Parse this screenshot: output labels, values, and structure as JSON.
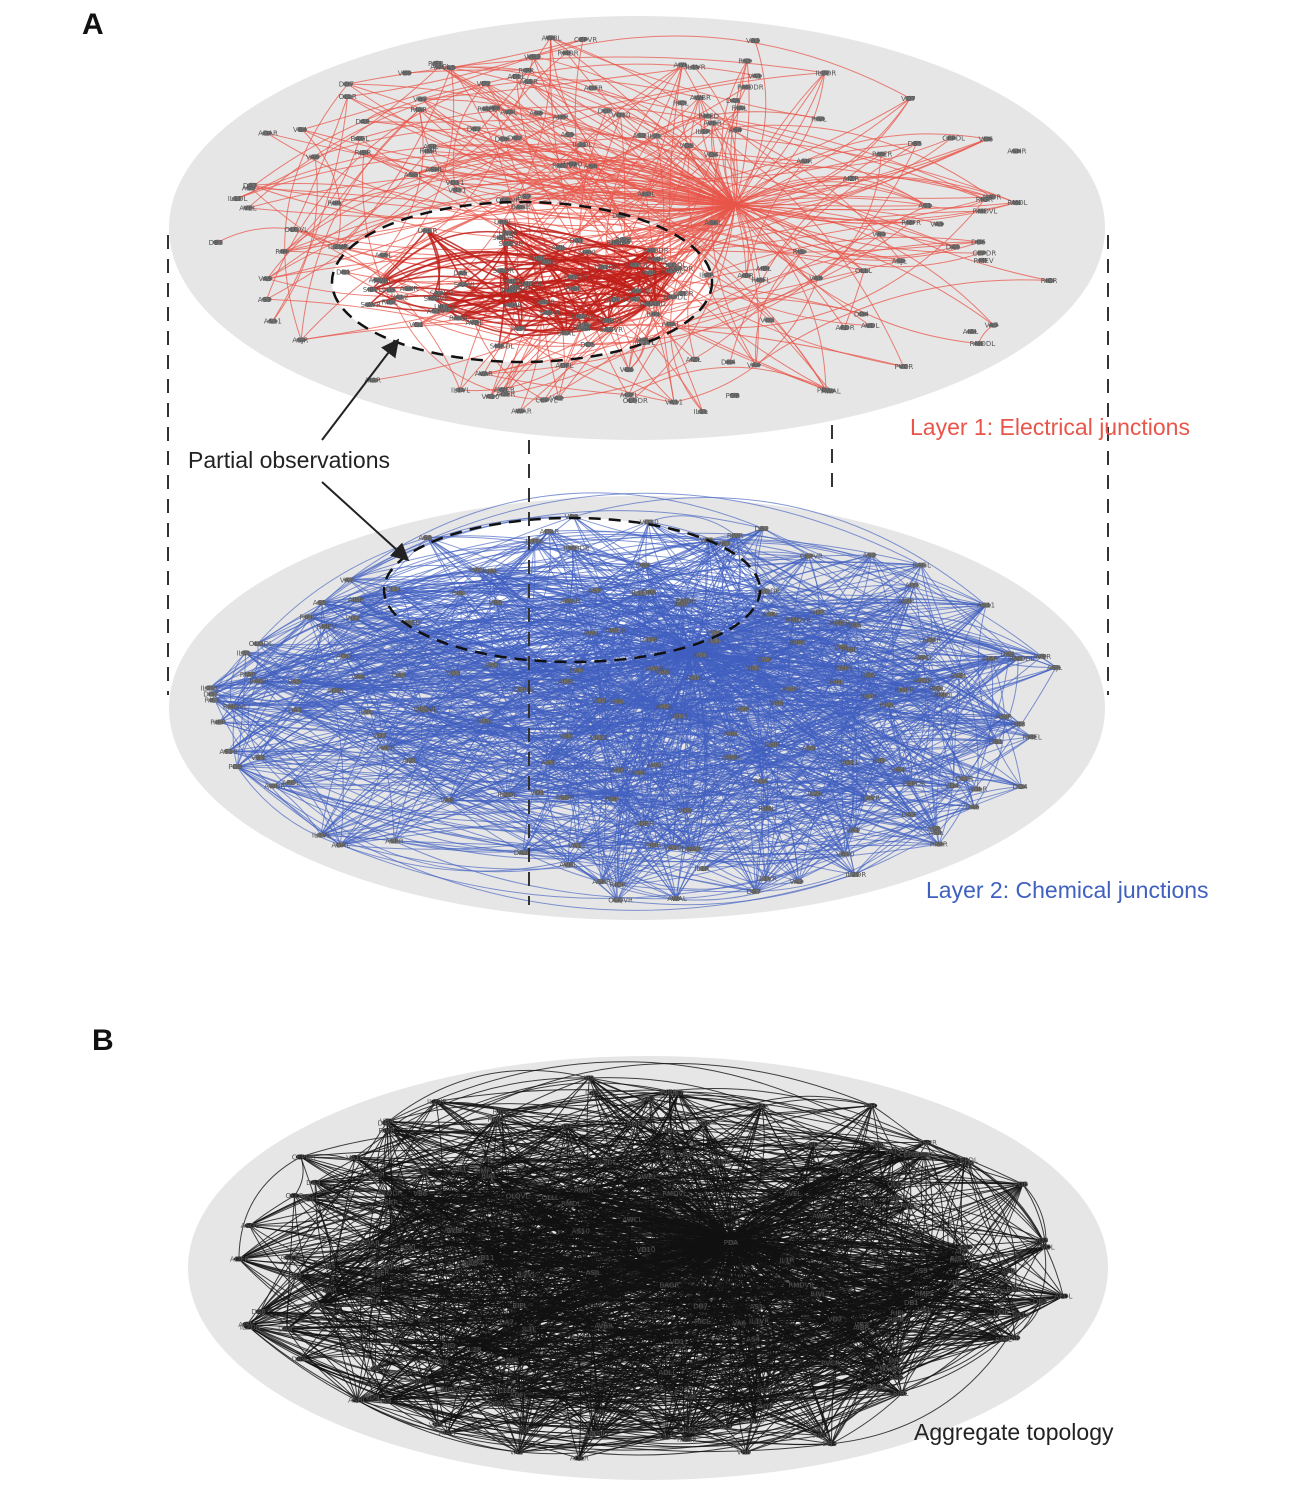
{
  "panels": {
    "a": {
      "letter": "A",
      "layer1": {
        "label": "Layer 1: Electrical junctions",
        "edge_color": "#e8564a",
        "highlight_edge_color": "#c0201a"
      },
      "layer2": {
        "label": "Layer 2: Chemical junctions",
        "edge_color": "#4060c0"
      },
      "annotation": "Partial observations"
    },
    "b": {
      "letter": "B",
      "label": "Aggregate topology",
      "edge_color": "#111111"
    }
  },
  "colors": {
    "disk": "#e6e6e6",
    "node": "#6f6f6f",
    "layer1_text": "#e8564a",
    "layer2_text": "#4060c0",
    "aggregate_text": "#222222"
  },
  "node_labels": [
    "DD6",
    "DD7",
    "VD2",
    "PDA",
    "VD8",
    "VD10",
    "VD9",
    "VD11",
    "PDB",
    "VD7",
    "DD4",
    "DD3",
    "DD5",
    "VD6",
    "VD5",
    "VD4",
    "VD3",
    "VD1",
    "AS1",
    "AS2",
    "AS3",
    "AS4",
    "AS5",
    "AS6",
    "AS7",
    "AS8",
    "AS9",
    "AS10",
    "AS11",
    "DA1",
    "DA2",
    "DA3",
    "DA4",
    "DA5",
    "DA6",
    "DA7",
    "DA8",
    "DA9",
    "DB1",
    "DB2",
    "DB3",
    "DB4",
    "DB5",
    "DB6",
    "DB7",
    "VA1",
    "VA2",
    "VA3",
    "VA4",
    "VA5",
    "VA6",
    "VA7",
    "VA8",
    "VA9",
    "VA10",
    "VA11",
    "VA12",
    "VB1",
    "VB2",
    "VB3",
    "VB4",
    "VB5",
    "VB6",
    "VB7",
    "VB8",
    "VB9",
    "VB10",
    "VB11",
    "AVAL",
    "AVAR",
    "AVBL",
    "AVBR",
    "AVDL",
    "AVDR",
    "AVEL",
    "AVER",
    "PVCL",
    "PVCR",
    "RIML",
    "RIMR",
    "AIBL",
    "AIBR",
    "AIYL",
    "AIYR",
    "AIZL",
    "AIZR",
    "AIAL",
    "AIAR",
    "ADAL",
    "ADAR",
    "ADEL",
    "ADER",
    "ADFL",
    "ADFR",
    "ADLL",
    "ADLR",
    "AFDL",
    "AFDR",
    "ASEL",
    "ASER",
    "ASGL",
    "ASGR",
    "ASHL",
    "ASHR",
    "ASIL",
    "ASIR",
    "ASJL",
    "ASJR",
    "ASKL",
    "ASKR",
    "AWAL",
    "AWAR",
    "AWBL",
    "AWBR",
    "AWCL",
    "AWCR",
    "BAGL",
    "BAGR",
    "CEPDL",
    "CEPDR",
    "CEPVL",
    "CEPVR",
    "IL1DL",
    "IL1DR",
    "IL1L",
    "IL1R",
    "IL1VL",
    "IL1VR",
    "IL2DL",
    "IL2DR",
    "IL2L",
    "IL2R",
    "IL2VL",
    "IL2VR",
    "OLLL",
    "OLLR",
    "OLQDL",
    "OLQDR",
    "OLQVL",
    "OLQVR",
    "RIAL",
    "RIAR",
    "RIBL",
    "RIBR",
    "RICL",
    "RICR",
    "RID",
    "RIFL",
    "RIFR",
    "RIGL",
    "RIGR",
    "RIH",
    "RIPL",
    "RIPR",
    "RIR",
    "RIS",
    "RIVL",
    "RIVR",
    "RMDDL",
    "RMDDR",
    "RMDL",
    "RMDR",
    "RMDVL",
    "RMDVR",
    "RMED",
    "RMEL",
    "RMER",
    "RMEV",
    "RMFL",
    "RMFR",
    "RMGL",
    "RMGR",
    "RMHL",
    "RMHR",
    "SAADL",
    "SAADR",
    "SAAVL",
    "SAAVR",
    "SABD",
    "SABVL",
    "SABVR",
    "SIADL",
    "SIADR",
    "SIAVL",
    "SIAVR",
    "SIBDL",
    "SIBDR",
    "SIBVL",
    "SIBVR",
    "SMBDL",
    "SMBDR",
    "SMBVL",
    "SMBVR",
    "SMDDL",
    "SMDDR",
    "SMDVL",
    "SMDVR",
    "URADL",
    "URADR",
    "URAVL",
    "URAVR",
    "URBL",
    "URBR",
    "URXL",
    "URXR",
    "URYDL",
    "URYDR",
    "URYVL",
    "URYVR",
    "AVFL",
    "AVFR",
    "AVHL",
    "AVHR",
    "AVJL",
    "AVJR",
    "AVKL",
    "AVKR",
    "AVL",
    "AVM",
    "ALA",
    "ALML",
    "ALMR",
    "ALNL",
    "ALNR",
    "AQR",
    "AUAL",
    "AUAR",
    "AVG",
    "BDUL",
    "BDUR",
    "CANL",
    "CANR",
    "DVA",
    "DVB",
    "DVC",
    "FLPL",
    "FLPR",
    "HSNL",
    "HSNR",
    "LUAL",
    "LUAR",
    "PDEL",
    "PDER",
    "PHAL",
    "PHAR",
    "PHBL",
    "PHBR",
    "PHCL",
    "PHCR",
    "PLML",
    "PLMR",
    "PLNL",
    "PLNR",
    "PQR",
    "PVDL",
    "PVDR",
    "PVM",
    "PVNL",
    "PVNR",
    "PVPL",
    "PVPR",
    "PVQL",
    "PVQR",
    "PVR",
    "PVT",
    "PVWL",
    "PVWR",
    "SDQL",
    "SDQR"
  ]
}
